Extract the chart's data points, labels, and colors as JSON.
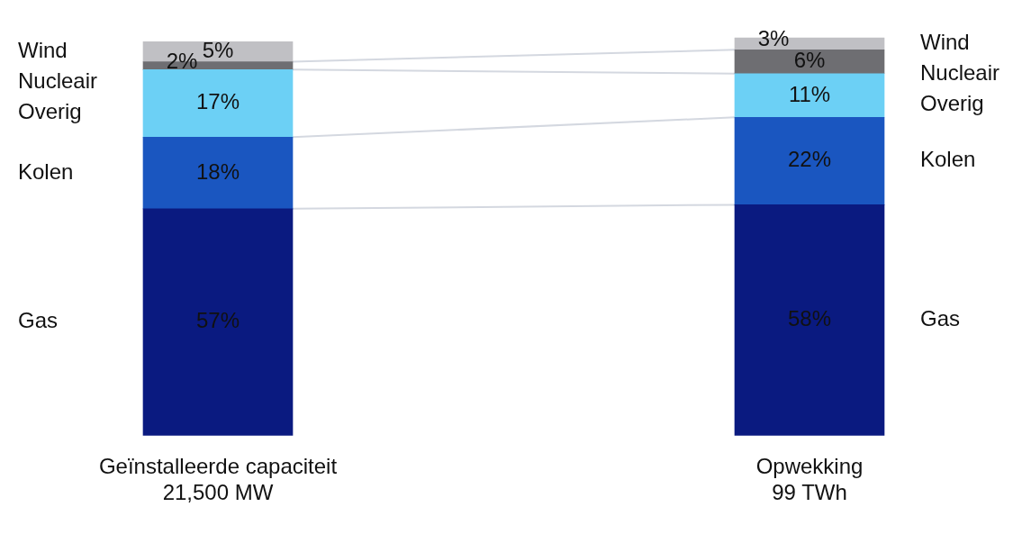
{
  "chart_data": {
    "type": "bar",
    "stacked": true,
    "categories": [
      "Geïnstalleerde capaciteit\n21,500 MW",
      "Opwekking\n99 TWh"
    ],
    "series": [
      {
        "name": "Gas",
        "color": "#0a1a80",
        "values": [
          57,
          58
        ],
        "value_labels": [
          "57%",
          "58%"
        ]
      },
      {
        "name": "Kolen",
        "color": "#1a56c0",
        "values": [
          18,
          22
        ],
        "value_labels": [
          "18%",
          "22%"
        ]
      },
      {
        "name": "Overig",
        "color": "#6cd0f5",
        "values": [
          17,
          11
        ],
        "value_labels": [
          "17%",
          "11%"
        ]
      },
      {
        "name": "Nucleair",
        "color": "#6e6e72",
        "values": [
          2,
          6
        ],
        "value_labels": [
          "2%",
          "6%"
        ]
      },
      {
        "name": "Wind",
        "color": "#c0c0c4",
        "values": [
          5,
          3
        ],
        "value_labels": [
          "5%",
          "3%"
        ]
      }
    ],
    "legend": false,
    "grid": false
  }
}
